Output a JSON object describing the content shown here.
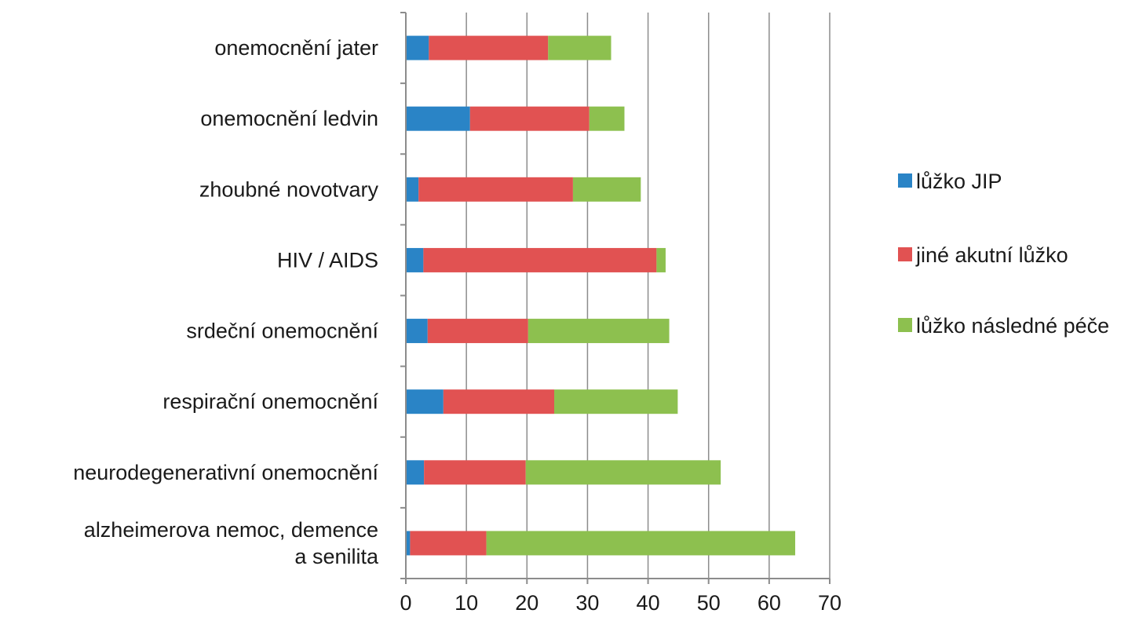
{
  "chart_data": {
    "type": "bar",
    "orientation": "horizontal",
    "stacked": true,
    "categories": [
      "onemocnění jater",
      "onemocnění ledvin",
      "zhoubné novotvary",
      "HIV / AIDS",
      "srdeční onemocnění",
      "respirační onemocnění",
      "neurodegenerativní onemocnění",
      "alzheimerova nemoc, demence a senilita"
    ],
    "category_lines": [
      [
        "onemocnění jater"
      ],
      [
        "onemocnění ledvin"
      ],
      [
        "zhoubné novotvary"
      ],
      [
        "HIV / AIDS"
      ],
      [
        "srdeční onemocnění"
      ],
      [
        "respirační onemocnění"
      ],
      [
        "neurodegenerativní onemocnění"
      ],
      [
        "alzheimerova nemoc, demence",
        "a senilita"
      ]
    ],
    "series": [
      {
        "name": "lůžko JIP",
        "color": "#2a84c6",
        "values": [
          3.8,
          10.6,
          2.1,
          2.9,
          3.6,
          6.2,
          3.0,
          0.7
        ]
      },
      {
        "name": "jiné akutní lůžko",
        "color": "#e15252",
        "values": [
          19.7,
          19.7,
          25.5,
          38.5,
          16.6,
          18.3,
          16.8,
          12.6
        ]
      },
      {
        "name": "lůžko následné péče",
        "color": "#8dc04f",
        "values": [
          10.4,
          5.8,
          11.2,
          1.5,
          23.3,
          20.4,
          32.2,
          51.0
        ]
      }
    ],
    "xlim": [
      0,
      70
    ],
    "xticks": [
      0,
      10,
      20,
      30,
      40,
      50,
      60,
      70
    ],
    "title": "",
    "xlabel": "",
    "ylabel": "",
    "grid": "vertical",
    "legend_position": "right"
  }
}
